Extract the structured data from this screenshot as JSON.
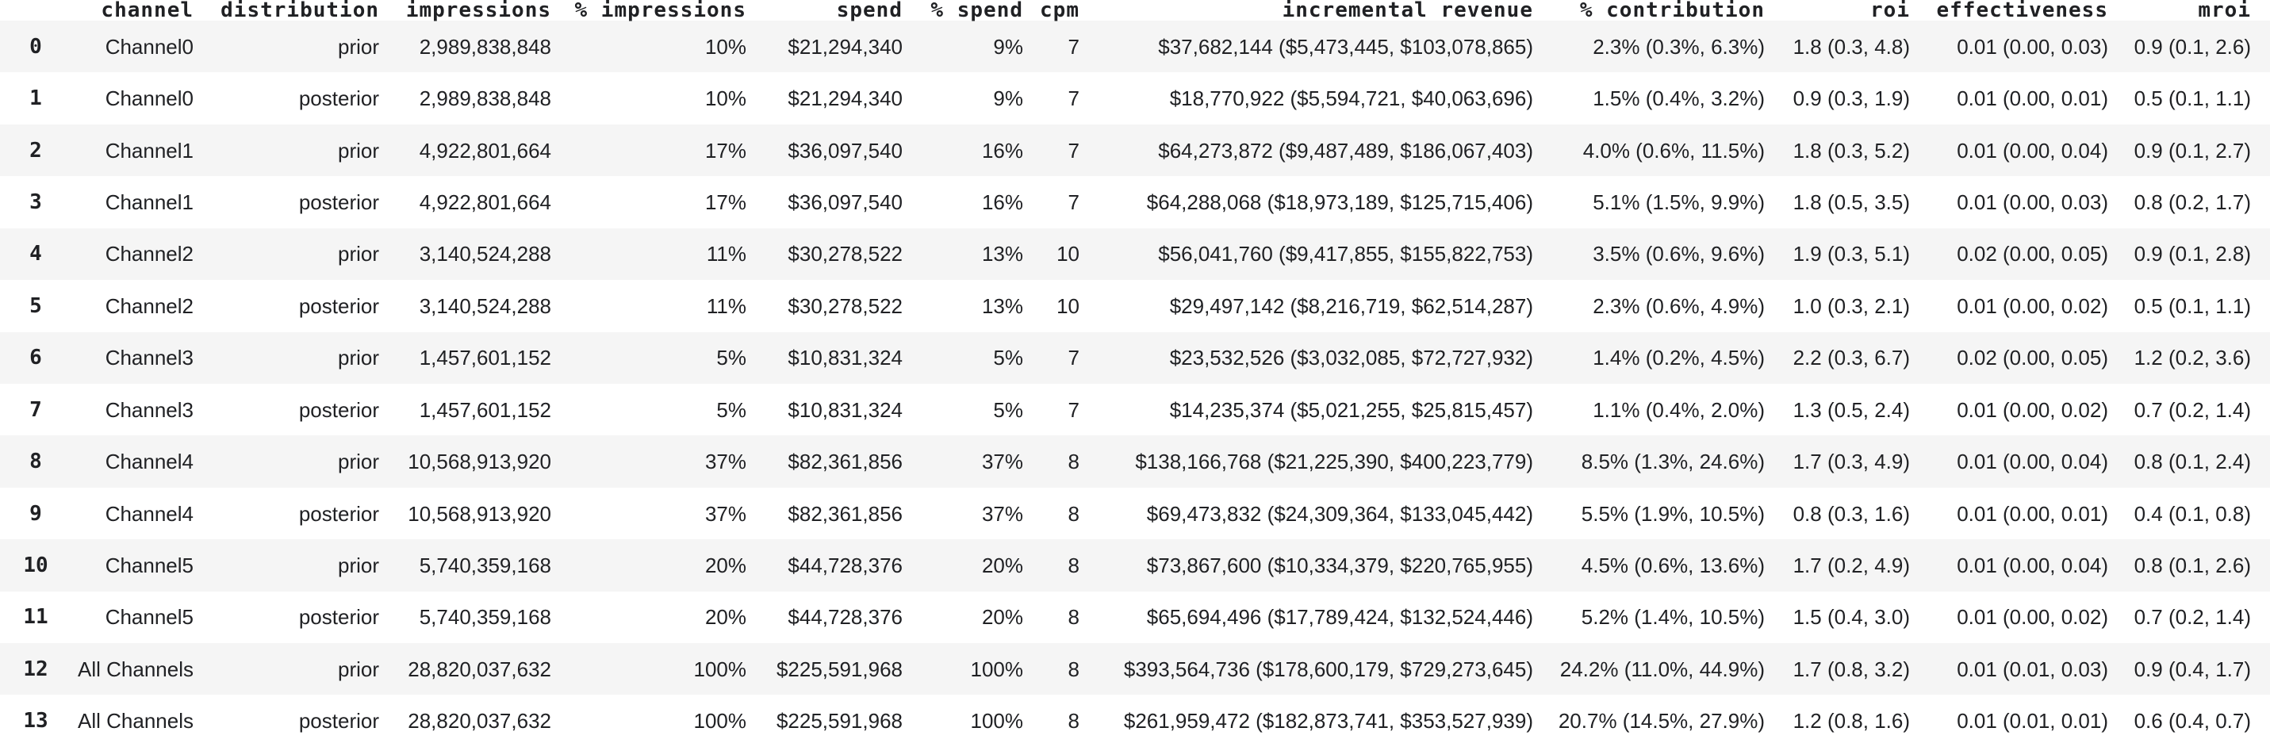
{
  "colors": {
    "row_alt_background": "#f5f5f5",
    "row_background": "#ffffff",
    "text": "#202124"
  },
  "chart_data": {
    "type": "table",
    "title": "",
    "columns": [
      "channel",
      "distribution",
      "impressions",
      "% impressions",
      "spend",
      "% spend",
      "cpm",
      "incremental revenue",
      "% contribution",
      "roi",
      "effectiveness",
      "mroi"
    ],
    "index": [
      "0",
      "1",
      "2",
      "3",
      "4",
      "5",
      "6",
      "7",
      "8",
      "9",
      "10",
      "11",
      "12",
      "13"
    ],
    "rows": [
      [
        "Channel0",
        "prior",
        "2,989,838,848",
        "10%",
        "$21,294,340",
        "9%",
        "7",
        "$37,682,144 ($5,473,445, $103,078,865)",
        "2.3% (0.3%, 6.3%)",
        "1.8 (0.3, 4.8)",
        "0.01 (0.00, 0.03)",
        "0.9 (0.1, 2.6)"
      ],
      [
        "Channel0",
        "posterior",
        "2,989,838,848",
        "10%",
        "$21,294,340",
        "9%",
        "7",
        "$18,770,922 ($5,594,721, $40,063,696)",
        "1.5% (0.4%, 3.2%)",
        "0.9 (0.3, 1.9)",
        "0.01 (0.00, 0.01)",
        "0.5 (0.1, 1.1)"
      ],
      [
        "Channel1",
        "prior",
        "4,922,801,664",
        "17%",
        "$36,097,540",
        "16%",
        "7",
        "$64,273,872 ($9,487,489, $186,067,403)",
        "4.0% (0.6%, 11.5%)",
        "1.8 (0.3, 5.2)",
        "0.01 (0.00, 0.04)",
        "0.9 (0.1, 2.7)"
      ],
      [
        "Channel1",
        "posterior",
        "4,922,801,664",
        "17%",
        "$36,097,540",
        "16%",
        "7",
        "$64,288,068 ($18,973,189, $125,715,406)",
        "5.1% (1.5%, 9.9%)",
        "1.8 (0.5, 3.5)",
        "0.01 (0.00, 0.03)",
        "0.8 (0.2, 1.7)"
      ],
      [
        "Channel2",
        "prior",
        "3,140,524,288",
        "11%",
        "$30,278,522",
        "13%",
        "10",
        "$56,041,760 ($9,417,855, $155,822,753)",
        "3.5% (0.6%, 9.6%)",
        "1.9 (0.3, 5.1)",
        "0.02 (0.00, 0.05)",
        "0.9 (0.1, 2.8)"
      ],
      [
        "Channel2",
        "posterior",
        "3,140,524,288",
        "11%",
        "$30,278,522",
        "13%",
        "10",
        "$29,497,142 ($8,216,719, $62,514,287)",
        "2.3% (0.6%, 4.9%)",
        "1.0 (0.3, 2.1)",
        "0.01 (0.00, 0.02)",
        "0.5 (0.1, 1.1)"
      ],
      [
        "Channel3",
        "prior",
        "1,457,601,152",
        "5%",
        "$10,831,324",
        "5%",
        "7",
        "$23,532,526 ($3,032,085, $72,727,932)",
        "1.4% (0.2%, 4.5%)",
        "2.2 (0.3, 6.7)",
        "0.02 (0.00, 0.05)",
        "1.2 (0.2, 3.6)"
      ],
      [
        "Channel3",
        "posterior",
        "1,457,601,152",
        "5%",
        "$10,831,324",
        "5%",
        "7",
        "$14,235,374 ($5,021,255, $25,815,457)",
        "1.1% (0.4%, 2.0%)",
        "1.3 (0.5, 2.4)",
        "0.01 (0.00, 0.02)",
        "0.7 (0.2, 1.4)"
      ],
      [
        "Channel4",
        "prior",
        "10,568,913,920",
        "37%",
        "$82,361,856",
        "37%",
        "8",
        "$138,166,768 ($21,225,390, $400,223,779)",
        "8.5% (1.3%, 24.6%)",
        "1.7 (0.3, 4.9)",
        "0.01 (0.00, 0.04)",
        "0.8 (0.1, 2.4)"
      ],
      [
        "Channel4",
        "posterior",
        "10,568,913,920",
        "37%",
        "$82,361,856",
        "37%",
        "8",
        "$69,473,832 ($24,309,364, $133,045,442)",
        "5.5% (1.9%, 10.5%)",
        "0.8 (0.3, 1.6)",
        "0.01 (0.00, 0.01)",
        "0.4 (0.1, 0.8)"
      ],
      [
        "Channel5",
        "prior",
        "5,740,359,168",
        "20%",
        "$44,728,376",
        "20%",
        "8",
        "$73,867,600 ($10,334,379, $220,765,955)",
        "4.5% (0.6%, 13.6%)",
        "1.7 (0.2, 4.9)",
        "0.01 (0.00, 0.04)",
        "0.8 (0.1, 2.6)"
      ],
      [
        "Channel5",
        "posterior",
        "5,740,359,168",
        "20%",
        "$44,728,376",
        "20%",
        "8",
        "$65,694,496 ($17,789,424, $132,524,446)",
        "5.2% (1.4%, 10.5%)",
        "1.5 (0.4, 3.0)",
        "0.01 (0.00, 0.02)",
        "0.7 (0.2, 1.4)"
      ],
      [
        "All Channels",
        "prior",
        "28,820,037,632",
        "100%",
        "$225,591,968",
        "100%",
        "8",
        "$393,564,736 ($178,600,179, $729,273,645)",
        "24.2% (11.0%, 44.9%)",
        "1.7 (0.8, 3.2)",
        "0.01 (0.01, 0.03)",
        "0.9 (0.4, 1.7)"
      ],
      [
        "All Channels",
        "posterior",
        "28,820,037,632",
        "100%",
        "$225,591,968",
        "100%",
        "8",
        "$261,959,472 ($182,873,741, $353,527,939)",
        "20.7% (14.5%, 27.9%)",
        "1.2 (0.8, 1.6)",
        "0.01 (0.01, 0.01)",
        "0.6 (0.4, 0.7)"
      ]
    ]
  }
}
